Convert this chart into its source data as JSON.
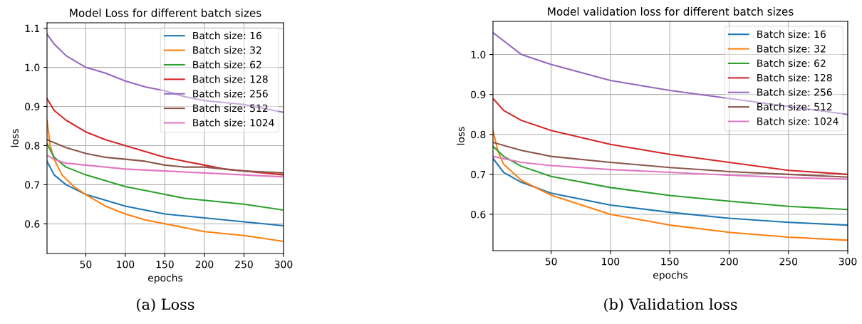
{
  "chart_data": [
    {
      "type": "line",
      "title": "Model Loss for different batch sizes",
      "xlabel": "epochs",
      "ylabel": "loss",
      "xlim": [
        1,
        300
      ],
      "ylim": [
        0.524,
        1.114
      ],
      "xticks": [
        50,
        100,
        150,
        200,
        250,
        300
      ],
      "yticks": [
        0.6,
        0.7,
        0.8,
        0.9,
        {
          "value": 1.0,
          "label": "1.0"
        },
        1.1
      ],
      "grid": true,
      "legend": "top right",
      "annotations": [
        "(a) Loss"
      ],
      "series": [
        {
          "name": "Batch size: 16",
          "color": "#1f77b4",
          "x": [
            1,
            10,
            25,
            50,
            75,
            100,
            125,
            150,
            175,
            200,
            250,
            300
          ],
          "values": [
            0.76,
            0.725,
            0.7,
            0.675,
            0.66,
            0.645,
            0.635,
            0.625,
            0.62,
            0.615,
            0.605,
            0.595
          ]
        },
        {
          "name": "Batch size: 32",
          "color": "#ff7f0e",
          "x": [
            1,
            5,
            10,
            20,
            35,
            50,
            75,
            100,
            125,
            150,
            175,
            200,
            250,
            300
          ],
          "values": [
            0.865,
            0.8,
            0.765,
            0.725,
            0.695,
            0.675,
            0.645,
            0.625,
            0.61,
            0.6,
            0.59,
            0.58,
            0.57,
            0.555
          ]
        },
        {
          "name": "Batch size: 62",
          "color": "#2ca02c",
          "x": [
            1,
            10,
            25,
            50,
            75,
            100,
            125,
            150,
            175,
            200,
            250,
            300
          ],
          "values": [
            0.805,
            0.77,
            0.745,
            0.725,
            0.71,
            0.695,
            0.685,
            0.675,
            0.665,
            0.66,
            0.65,
            0.635
          ]
        },
        {
          "name": "Batch size: 128",
          "color": "#d62728",
          "x": [
            1,
            10,
            25,
            50,
            75,
            100,
            125,
            150,
            175,
            200,
            225,
            250,
            300
          ],
          "values": [
            0.92,
            0.89,
            0.865,
            0.835,
            0.815,
            0.8,
            0.785,
            0.77,
            0.76,
            0.75,
            0.74,
            0.735,
            0.725
          ]
        },
        {
          "name": "Batch size: 256",
          "color": "#9467bd",
          "x": [
            1,
            10,
            25,
            50,
            75,
            100,
            125,
            150,
            175,
            200,
            250,
            275,
            300
          ],
          "values": [
            1.085,
            1.06,
            1.03,
            1.0,
            0.985,
            0.965,
            0.95,
            0.94,
            0.925,
            0.915,
            0.905,
            0.895,
            0.885
          ]
        },
        {
          "name": "Batch size: 512",
          "color": "#8c564b",
          "x": [
            1,
            25,
            50,
            75,
            100,
            125,
            150,
            175,
            200,
            250,
            300
          ],
          "values": [
            0.815,
            0.795,
            0.78,
            0.77,
            0.765,
            0.76,
            0.75,
            0.745,
            0.745,
            0.735,
            0.73
          ]
        },
        {
          "name": "Batch size: 1024",
          "color": "#e377c2",
          "x": [
            1,
            10,
            25,
            50,
            100,
            150,
            200,
            250,
            300
          ],
          "values": [
            0.775,
            0.765,
            0.755,
            0.75,
            0.74,
            0.735,
            0.73,
            0.725,
            0.72
          ]
        }
      ]
    },
    {
      "type": "line",
      "title": "Model validation loss for different batch sizes",
      "xlabel": "epochs",
      "ylabel": "loss",
      "xlim": [
        1,
        300
      ],
      "ylim": [
        0.509,
        1.083
      ],
      "xticks": [
        50,
        100,
        150,
        200,
        250,
        300
      ],
      "yticks": [
        0.6,
        0.7,
        0.8,
        0.9,
        {
          "value": 1.0,
          "label": "1.0"
        }
      ],
      "grid": true,
      "legend": "top right",
      "annotations": [
        "(b) Validation loss"
      ],
      "series": [
        {
          "name": "Batch size: 16",
          "color": "#1f77b4",
          "x": [
            1,
            10,
            25,
            50,
            100,
            150,
            200,
            250,
            300
          ],
          "values": [
            0.74,
            0.705,
            0.68,
            0.653,
            0.623,
            0.605,
            0.59,
            0.58,
            0.573
          ]
        },
        {
          "name": "Batch size: 32",
          "color": "#ff7f0e",
          "x": [
            1,
            5,
            10,
            25,
            50,
            100,
            150,
            200,
            250,
            300
          ],
          "values": [
            0.81,
            0.76,
            0.725,
            0.685,
            0.648,
            0.6,
            0.573,
            0.555,
            0.543,
            0.535
          ]
        },
        {
          "name": "Batch size: 62",
          "color": "#2ca02c",
          "x": [
            1,
            10,
            25,
            50,
            100,
            150,
            200,
            250,
            300
          ],
          "values": [
            0.77,
            0.745,
            0.72,
            0.695,
            0.667,
            0.647,
            0.633,
            0.62,
            0.612
          ]
        },
        {
          "name": "Batch size: 128",
          "color": "#d62728",
          "x": [
            1,
            10,
            25,
            50,
            100,
            150,
            200,
            250,
            300
          ],
          "values": [
            0.89,
            0.86,
            0.835,
            0.81,
            0.775,
            0.75,
            0.73,
            0.71,
            0.7
          ]
        },
        {
          "name": "Batch size: 256",
          "color": "#9467bd",
          "x": [
            1,
            25,
            50,
            100,
            150,
            200,
            250,
            300
          ],
          "values": [
            1.055,
            1.0,
            0.975,
            0.935,
            0.91,
            0.89,
            0.87,
            0.85
          ]
        },
        {
          "name": "Batch size: 512",
          "color": "#8c564b",
          "x": [
            1,
            25,
            50,
            100,
            150,
            200,
            250,
            300
          ],
          "values": [
            0.78,
            0.76,
            0.745,
            0.73,
            0.717,
            0.707,
            0.7,
            0.693
          ]
        },
        {
          "name": "Batch size: 1024",
          "color": "#e377c2",
          "x": [
            1,
            25,
            50,
            100,
            150,
            200,
            250,
            300
          ],
          "values": [
            0.745,
            0.73,
            0.722,
            0.712,
            0.705,
            0.698,
            0.692,
            0.688
          ]
        }
      ]
    }
  ]
}
